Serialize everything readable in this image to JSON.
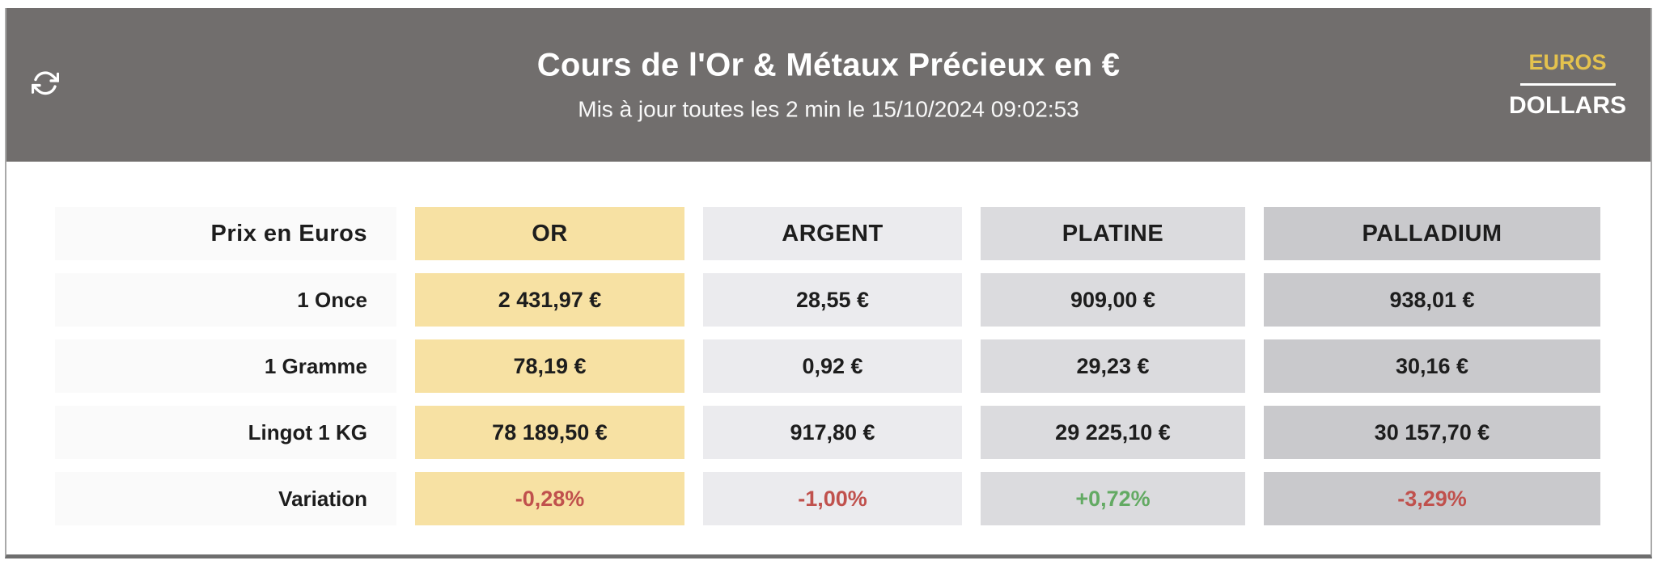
{
  "header": {
    "title": "Cours de l'Or & Métaux Précieux en €",
    "subtitle": "Mis à jour toutes les 2 min le 15/10/2024 09:02:53",
    "currency": {
      "selected": "EUROS",
      "options": [
        "EUROS",
        "DOLLARS"
      ]
    }
  },
  "table": {
    "corner_label": "Prix en Euros",
    "columns": [
      {
        "label": "OR",
        "color": "#f7e1a3"
      },
      {
        "label": "ARGENT",
        "color": "#ebebee"
      },
      {
        "label": "PLATINE",
        "color": "#dbdbde"
      },
      {
        "label": "PALLADIUM",
        "color": "#c9c9cc"
      }
    ],
    "rows": [
      {
        "label": "1 Once",
        "values": [
          "2 431,97 €",
          "28,55 €",
          "909,00 €",
          "938,01 €"
        ]
      },
      {
        "label": "1 Gramme",
        "values": [
          "78,19 €",
          "0,92 €",
          "29,23 €",
          "30,16 €"
        ]
      },
      {
        "label": "Lingot 1 KG",
        "values": [
          "78 189,50 €",
          "917,80 €",
          "29 225,10 €",
          "30 157,70 €"
        ]
      },
      {
        "label": "Variation",
        "values": [
          "-0,28%",
          "-1,00%",
          "+0,72%",
          "-3,29%"
        ],
        "value_colors": [
          "#c0514d",
          "#c0514d",
          "#63aa63",
          "#c0514d"
        ]
      }
    ]
  },
  "colors": {
    "header_background": "#716e6d",
    "accent_gold": "#e4c24e",
    "negative": "#c0514d",
    "positive": "#63aa63",
    "label_cell": "#fafafa"
  }
}
